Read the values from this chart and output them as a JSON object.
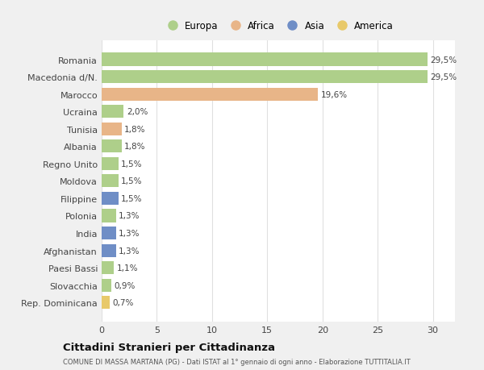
{
  "countries": [
    "Romania",
    "Macedonia d/N.",
    "Marocco",
    "Ucraina",
    "Tunisia",
    "Albania",
    "Regno Unito",
    "Moldova",
    "Filippine",
    "Polonia",
    "India",
    "Afghanistan",
    "Paesi Bassi",
    "Slovacchia",
    "Rep. Dominicana"
  ],
  "values": [
    29.5,
    29.5,
    19.6,
    2.0,
    1.8,
    1.8,
    1.5,
    1.5,
    1.5,
    1.3,
    1.3,
    1.3,
    1.1,
    0.9,
    0.7
  ],
  "labels": [
    "29,5%",
    "29,5%",
    "19,6%",
    "2,0%",
    "1,8%",
    "1,8%",
    "1,5%",
    "1,5%",
    "1,5%",
    "1,3%",
    "1,3%",
    "1,3%",
    "1,1%",
    "0,9%",
    "0,7%"
  ],
  "continents": [
    "Europa",
    "Europa",
    "Africa",
    "Europa",
    "Africa",
    "Europa",
    "Europa",
    "Europa",
    "Asia",
    "Europa",
    "Asia",
    "Asia",
    "Europa",
    "Europa",
    "America"
  ],
  "colors": {
    "Europa": "#aecf8a",
    "Africa": "#e8b588",
    "Asia": "#6f8ec6",
    "America": "#e8c96a"
  },
  "title": "Cittadini Stranieri per Cittadinanza",
  "subtitle": "COMUNE DI MASSA MARTANA (PG) - Dati ISTAT al 1° gennaio di ogni anno - Elaborazione TUTTITALIA.IT",
  "xlim": [
    0,
    32
  ],
  "xticks": [
    0,
    5,
    10,
    15,
    20,
    25,
    30
  ],
  "fig_bg_color": "#f0f0f0",
  "plot_bg_color": "#ffffff",
  "grid_color": "#e0e0e0"
}
